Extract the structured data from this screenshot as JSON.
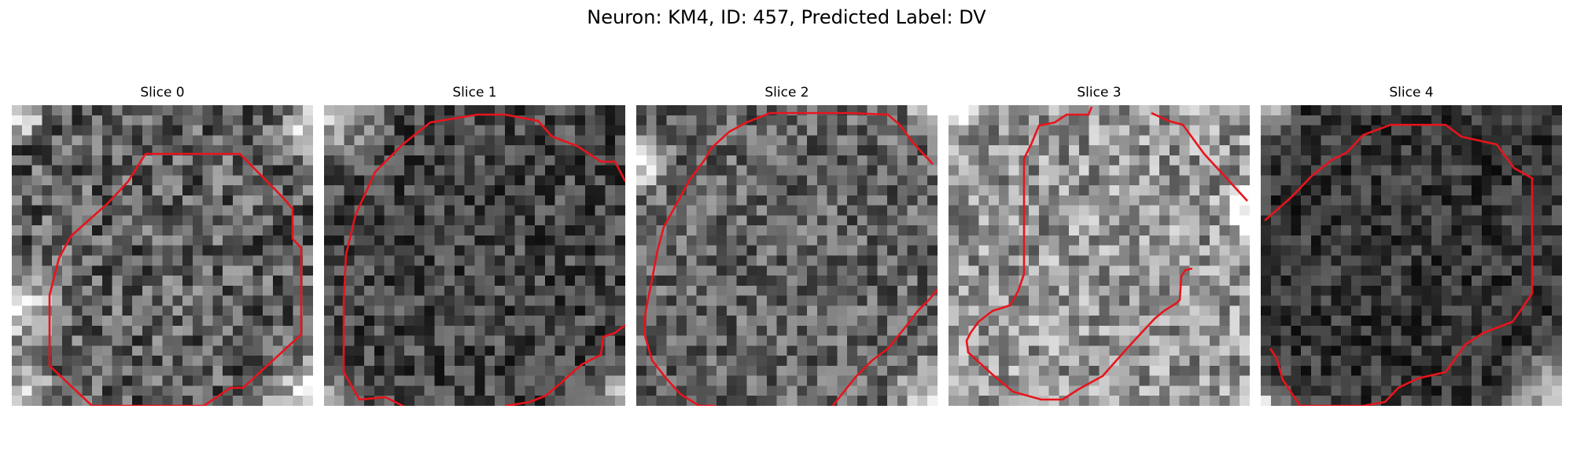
{
  "figure": {
    "title": "Neuron: KM4, ID: 457, Predicted Label: DV"
  },
  "panels": [
    {
      "label": "Slice 0",
      "contour_color": "#e8141c"
    },
    {
      "label": "Slice 1",
      "contour_color": "#e8141c"
    },
    {
      "label": "Slice 2",
      "contour_color": "#e8141c"
    },
    {
      "label": "Slice 3",
      "contour_color": "#e8141c"
    },
    {
      "label": "Slice 4",
      "contour_color": "#e8141c"
    }
  ]
}
